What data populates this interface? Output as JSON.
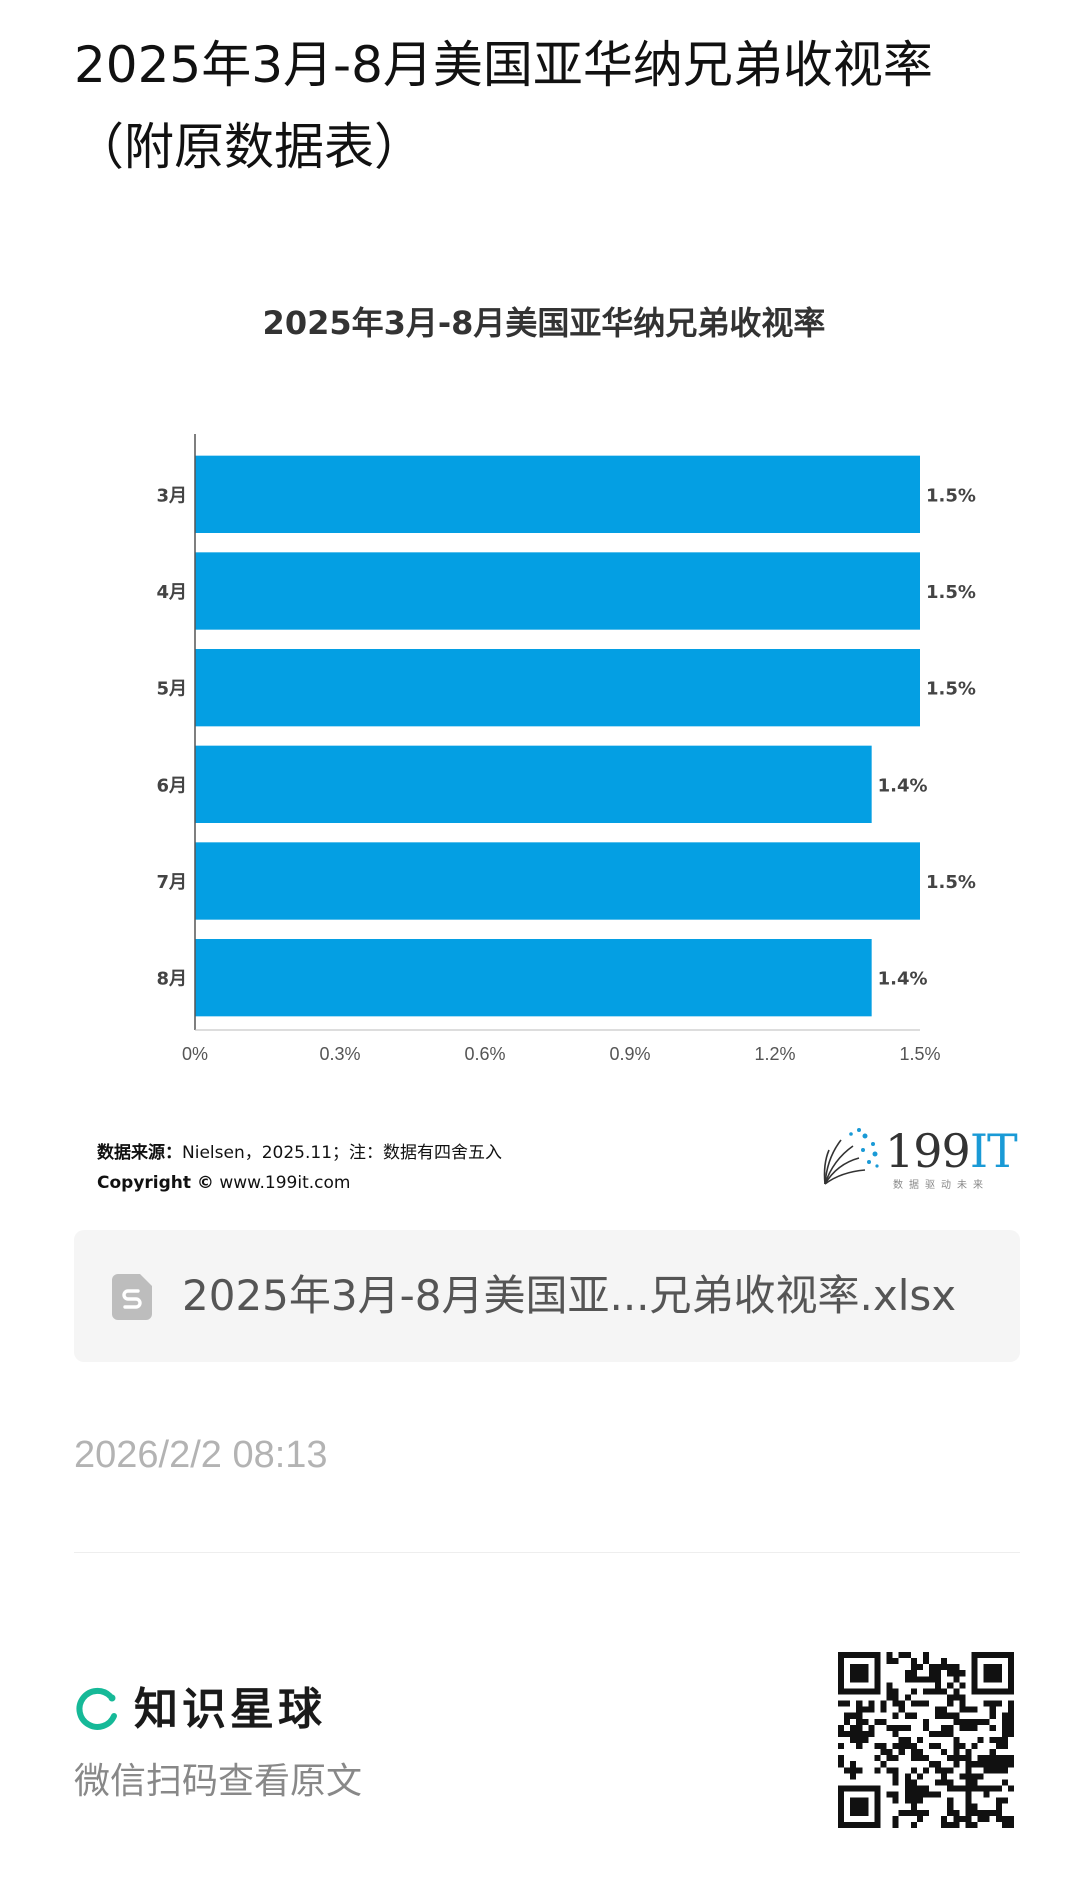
{
  "page": {
    "title": "2025年3月-8月美国亚华纳兄弟收视率（附原数据表）"
  },
  "chart_data": {
    "type": "bar",
    "orientation": "horizontal",
    "title": "2025年3月-8月美国亚华纳兄弟收视率",
    "categories": [
      "3月",
      "4月",
      "5月",
      "6月",
      "7月",
      "8月"
    ],
    "values": [
      1.5,
      1.5,
      1.5,
      1.4,
      1.5,
      1.4
    ],
    "value_labels": [
      "1.5%",
      "1.5%",
      "1.5%",
      "1.4%",
      "1.5%",
      "1.4%"
    ],
    "xlim": [
      0,
      1.5
    ],
    "xticks": [
      "0%",
      "0.3%",
      "0.6%",
      "0.9%",
      "1.2%",
      "1.5%"
    ],
    "xlabel": "",
    "ylabel": "",
    "grid": false,
    "bar_color": "#049fe3"
  },
  "source": {
    "label": "数据来源：",
    "text": "Nielsen，2025.11；注：数据有四舍五入",
    "copyright_label": "Copyright ©",
    "copyright_url": "www.199it.com"
  },
  "logo": {
    "number": "199",
    "it": "IT",
    "tagline": "数据驱动未来"
  },
  "file": {
    "name": "2025年3月-8月美国亚...兄弟收视率.xlsx",
    "icon": "spreadsheet-file-icon"
  },
  "timestamp": "2026/2/2 08:13",
  "footer": {
    "brand_name": "知识星球",
    "scan_tip": "微信扫码查看原文",
    "brand_color": "#16b998"
  }
}
